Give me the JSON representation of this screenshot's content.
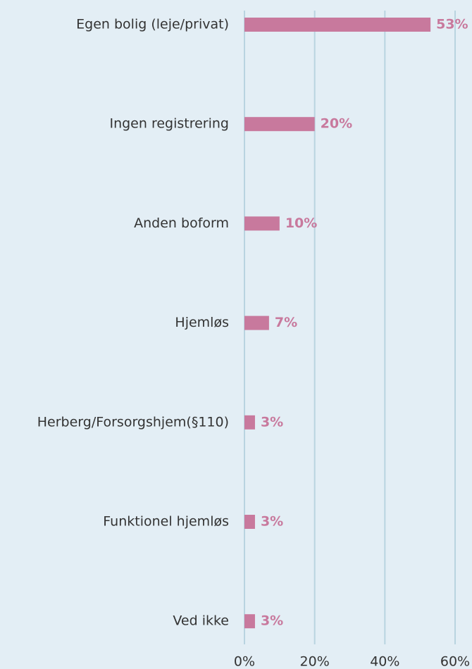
{
  "chart_data": {
    "type": "bar",
    "orientation": "horizontal",
    "categories": [
      "Egen bolig (leje/privat)",
      "Ingen registrering",
      "Anden boform",
      "Hjemløs",
      "Herberg/Forsorgshjem(§110)",
      "Funktionel hjemløs",
      "Ved ikke"
    ],
    "values": [
      53,
      20,
      10,
      7,
      3,
      3,
      3
    ],
    "value_labels": [
      "53%",
      "20%",
      "10%",
      "7%",
      "3%",
      "3%",
      "3%"
    ],
    "color": "#c8799d",
    "xlim": [
      0,
      60
    ],
    "xticks": [
      {
        "value": 0,
        "label": "0%"
      },
      {
        "value": 20,
        "label": "20%"
      },
      {
        "value": 40,
        "label": "40%"
      },
      {
        "value": 60,
        "label": "60%"
      }
    ],
    "grid": true
  }
}
